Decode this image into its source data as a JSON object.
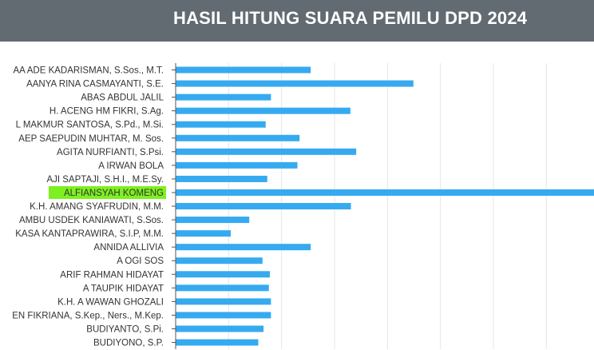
{
  "header": {
    "title": "HASIL HITUNG SUARA PEMILU DPD 2024"
  },
  "colors": {
    "header_bg": "#626a72",
    "bar": "#36aaf0",
    "highlight_label_bg": "#7ef020",
    "grid": "#e6e6e6",
    "axis": "#555555",
    "label_text": "#333333"
  },
  "chart_data": {
    "type": "bar",
    "orientation": "horizontal",
    "title": "",
    "xlabel": "",
    "ylabel": "",
    "grid": true,
    "highlighted_category": "ALFIANSYAH KOMENG",
    "categories": [
      "AA ADE KADARISMAN, S.Sos., M.T.",
      "AANYA RINA CASMAYANTI, S.E.",
      "ABAS ABDUL JALIL",
      "H. ACENG HM FIKRI, S.Ag.",
      "L MAKMUR SANTOSA, S.Pd., M.Si.",
      "AEP SAEPUDIN MUHTAR, M. Sos.",
      "AGITA NURFIANTI, S.Psi.",
      "A IRWAN BOLA",
      "AJI SAPTAJI, S.H.I., M.E.Sy.",
      "ALFIANSYAH KOMENG",
      "K.H. AMANG SYAFRUDIN, M.M.",
      "AMBU USDEK KANIAWATI, S.Sos.",
      "KASA KANTAPRAWIRA, S.I.P, M.M.",
      "ANNIDA ALLIVIA",
      "A OGI SOS",
      "ARIF RAHMAN HIDAYAT",
      "A TAUPIK HIDAYAT",
      "K.H. A WAWAN GHOZALI",
      "EN FIKRIANA, S.Kep., Ners., M.Kep.",
      "BUDIYANTO, S.Pi.",
      "BUDIYONO, S.P."
    ],
    "values": [
      2.55,
      4.49,
      1.8,
      3.3,
      1.7,
      2.34,
      3.41,
      2.3,
      1.73,
      7.9,
      3.31,
      1.39,
      1.04,
      2.55,
      1.64,
      1.78,
      1.76,
      1.8,
      1.8,
      1.66,
      1.56
    ],
    "xlim": [
      0,
      7.9
    ]
  }
}
